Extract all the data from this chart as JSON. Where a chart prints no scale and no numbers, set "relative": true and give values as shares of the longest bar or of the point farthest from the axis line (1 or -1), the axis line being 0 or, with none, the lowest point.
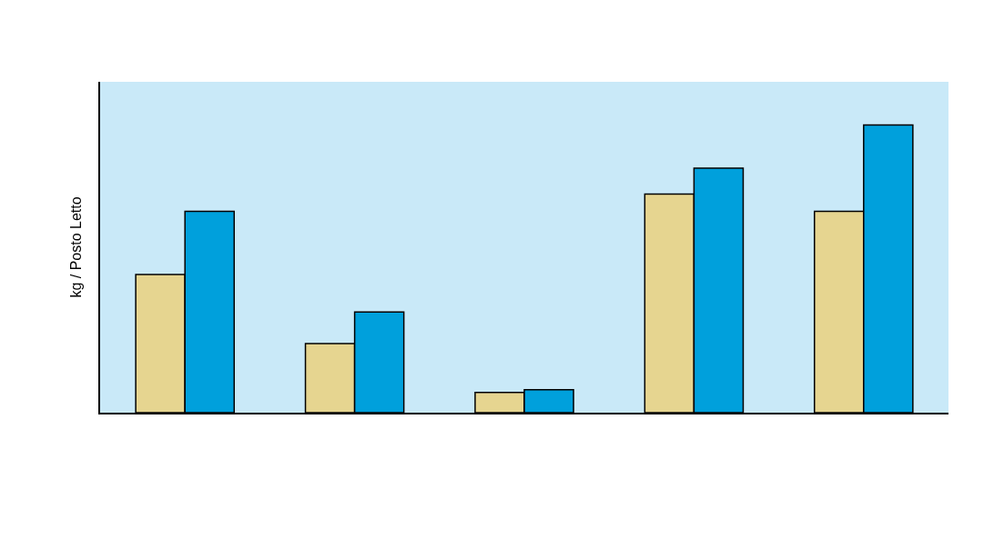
{
  "chart_data": {
    "type": "bar",
    "ylabel": "kg / Posto Letto",
    "relative": true,
    "categories": [
      null,
      null,
      null,
      null,
      null
    ],
    "series": [
      {
        "color": "#e6d590",
        "values": [
          0.48,
          0.24,
          0.07,
          0.76,
          0.7
        ]
      },
      {
        "color": "#00a0dc",
        "values": [
          0.7,
          0.35,
          0.08,
          0.85,
          1.0
        ]
      }
    ],
    "grid": false
  }
}
